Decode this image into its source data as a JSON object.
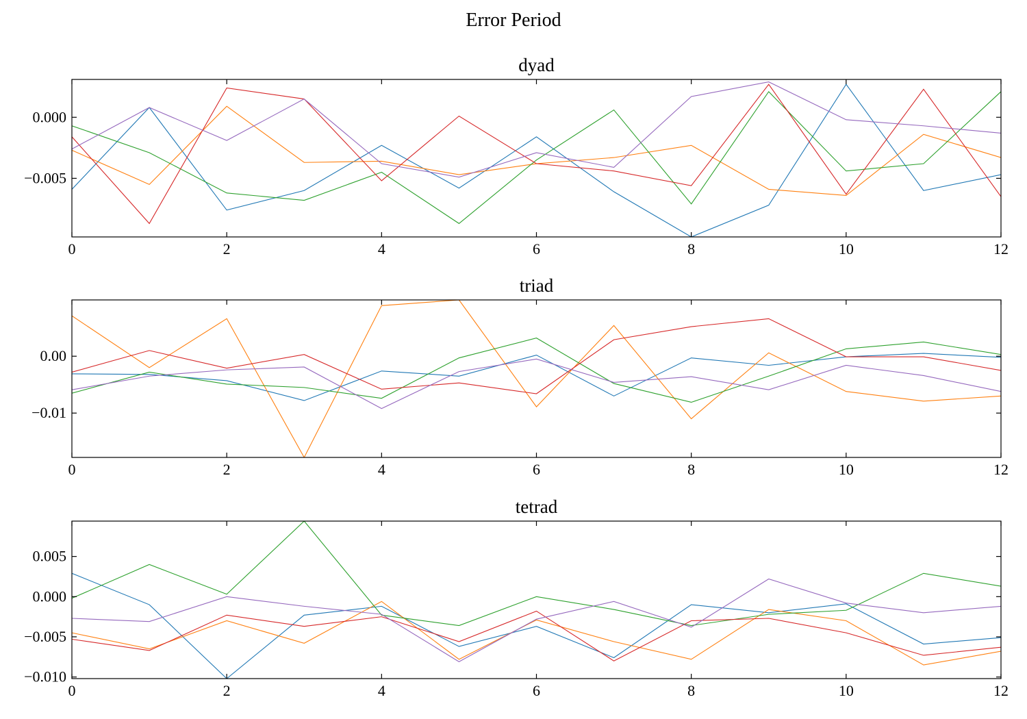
{
  "figure": {
    "title": "Error Period"
  },
  "colors": [
    "#1f77b4",
    "#ff7f0e",
    "#2ca02c",
    "#d62728",
    "#9467bd"
  ],
  "chart_data": [
    {
      "type": "line",
      "title": "dyad",
      "xlabel": "",
      "ylabel": "",
      "xlim": [
        0,
        12
      ],
      "ylim": [
        -0.0098,
        0.0031
      ],
      "xticks": [
        0,
        2,
        4,
        6,
        8,
        10,
        12
      ],
      "xtick_labels": [
        "0",
        "2",
        "4",
        "6",
        "8",
        "10",
        "12"
      ],
      "yticks": [
        0.0,
        -0.005
      ],
      "ytick_labels": [
        "0.000",
        "−0.005"
      ],
      "grid": false,
      "x": [
        0,
        1,
        2,
        3,
        4,
        5,
        6,
        7,
        8,
        9,
        10,
        11,
        12
      ],
      "series": [
        {
          "values": [
            -0.0059,
            0.0008,
            -0.0076,
            -0.006,
            -0.0023,
            -0.0058,
            -0.0016,
            -0.0061,
            -0.0098,
            -0.0072,
            0.0027,
            -0.006,
            -0.0047
          ]
        },
        {
          "values": [
            -0.0027,
            -0.0055,
            0.0009,
            -0.0037,
            -0.0036,
            -0.0047,
            -0.0038,
            -0.0033,
            -0.0023,
            -0.0059,
            -0.0064,
            -0.0014,
            -0.0033
          ]
        },
        {
          "values": [
            -0.0007,
            -0.0029,
            -0.0062,
            -0.0068,
            -0.0045,
            -0.0087,
            -0.0035,
            0.0006,
            -0.0071,
            0.0021,
            -0.0044,
            -0.0038,
            0.0021
          ]
        },
        {
          "values": [
            -0.0016,
            -0.0087,
            0.0024,
            0.0015,
            -0.0052,
            0.0001,
            -0.0038,
            -0.0044,
            -0.0056,
            0.0027,
            -0.0063,
            0.0023,
            -0.0065
          ]
        },
        {
          "values": [
            -0.0026,
            0.0008,
            -0.0019,
            0.0015,
            -0.0038,
            -0.0049,
            -0.0029,
            -0.0041,
            0.0017,
            0.0029,
            -0.0002,
            -0.0007,
            -0.0013
          ]
        }
      ]
    },
    {
      "type": "line",
      "title": "triad",
      "xlabel": "",
      "ylabel": "",
      "xlim": [
        0,
        12
      ],
      "ylim": [
        -0.0178,
        0.0099
      ],
      "xticks": [
        0,
        2,
        4,
        6,
        8,
        10,
        12
      ],
      "xtick_labels": [
        "0",
        "2",
        "4",
        "6",
        "8",
        "10",
        "12"
      ],
      "yticks": [
        0.0,
        -0.01
      ],
      "ytick_labels": [
        "0.00",
        "−0.01"
      ],
      "grid": false,
      "x": [
        0,
        1,
        2,
        3,
        4,
        5,
        6,
        7,
        8,
        9,
        10,
        11,
        12
      ],
      "series": [
        {
          "values": [
            -0.0031,
            -0.0032,
            -0.0043,
            -0.0078,
            -0.0026,
            -0.0035,
            0.0002,
            -0.007,
            -0.0003,
            -0.0016,
            -0.0001,
            0.0005,
            -0.0002
          ]
        },
        {
          "values": [
            0.0071,
            -0.002,
            0.0066,
            -0.0178,
            0.0089,
            0.0099,
            -0.0089,
            0.0054,
            -0.011,
            0.0006,
            -0.0062,
            -0.0079,
            -0.007
          ]
        },
        {
          "values": [
            -0.0065,
            -0.0028,
            -0.0049,
            -0.0055,
            -0.0074,
            -0.0003,
            0.0032,
            -0.0048,
            -0.0081,
            -0.0035,
            0.0013,
            0.0025,
            0.0003
          ]
        },
        {
          "values": [
            -0.0028,
            0.001,
            -0.0021,
            0.0003,
            -0.0058,
            -0.0047,
            -0.0066,
            0.0029,
            0.0052,
            0.0066,
            -0.0001,
            -0.0001,
            -0.0025
          ]
        },
        {
          "values": [
            -0.0059,
            -0.0035,
            -0.0024,
            -0.0019,
            -0.0092,
            -0.0027,
            -0.0005,
            -0.0046,
            -0.0036,
            -0.0059,
            -0.0016,
            -0.0034,
            -0.0062
          ]
        }
      ]
    },
    {
      "type": "line",
      "title": "tetrad",
      "xlabel": "",
      "ylabel": "",
      "xlim": [
        0,
        12
      ],
      "ylim": [
        -0.0102,
        0.0094
      ],
      "xticks": [
        0,
        2,
        4,
        6,
        8,
        10,
        12
      ],
      "xtick_labels": [
        "0",
        "2",
        "4",
        "6",
        "8",
        "10",
        "12"
      ],
      "yticks": [
        0.005,
        0.0,
        -0.005,
        -0.01
      ],
      "ytick_labels": [
        "0.005",
        "0.000",
        "−0.005",
        "−0.010"
      ],
      "grid": false,
      "x": [
        0,
        1,
        2,
        3,
        4,
        5,
        6,
        7,
        8,
        9,
        10,
        11,
        12
      ],
      "series": [
        {
          "values": [
            0.0029,
            -0.001,
            -0.0102,
            -0.0023,
            -0.0012,
            -0.0062,
            -0.0037,
            -0.0076,
            -0.001,
            -0.002,
            -0.0009,
            -0.0059,
            -0.0051
          ]
        },
        {
          "values": [
            -0.0045,
            -0.0065,
            -0.003,
            -0.0058,
            -0.0006,
            -0.0078,
            -0.0029,
            -0.0056,
            -0.0078,
            -0.0016,
            -0.003,
            -0.0085,
            -0.0068
          ]
        },
        {
          "values": [
            -0.0002,
            0.004,
            0.0003,
            0.0094,
            -0.0023,
            -0.0036,
            0.0,
            -0.0016,
            -0.0036,
            -0.0022,
            -0.0017,
            0.0029,
            0.0013
          ]
        },
        {
          "values": [
            -0.0053,
            -0.0067,
            -0.0023,
            -0.0037,
            -0.0025,
            -0.0056,
            -0.0018,
            -0.008,
            -0.003,
            -0.0027,
            -0.0045,
            -0.0073,
            -0.0063
          ]
        },
        {
          "values": [
            -0.0027,
            -0.0031,
            0.0,
            -0.0012,
            -0.0022,
            -0.0081,
            -0.0028,
            -0.0006,
            -0.0038,
            0.0022,
            -0.0008,
            -0.002,
            -0.0012
          ]
        }
      ]
    }
  ]
}
